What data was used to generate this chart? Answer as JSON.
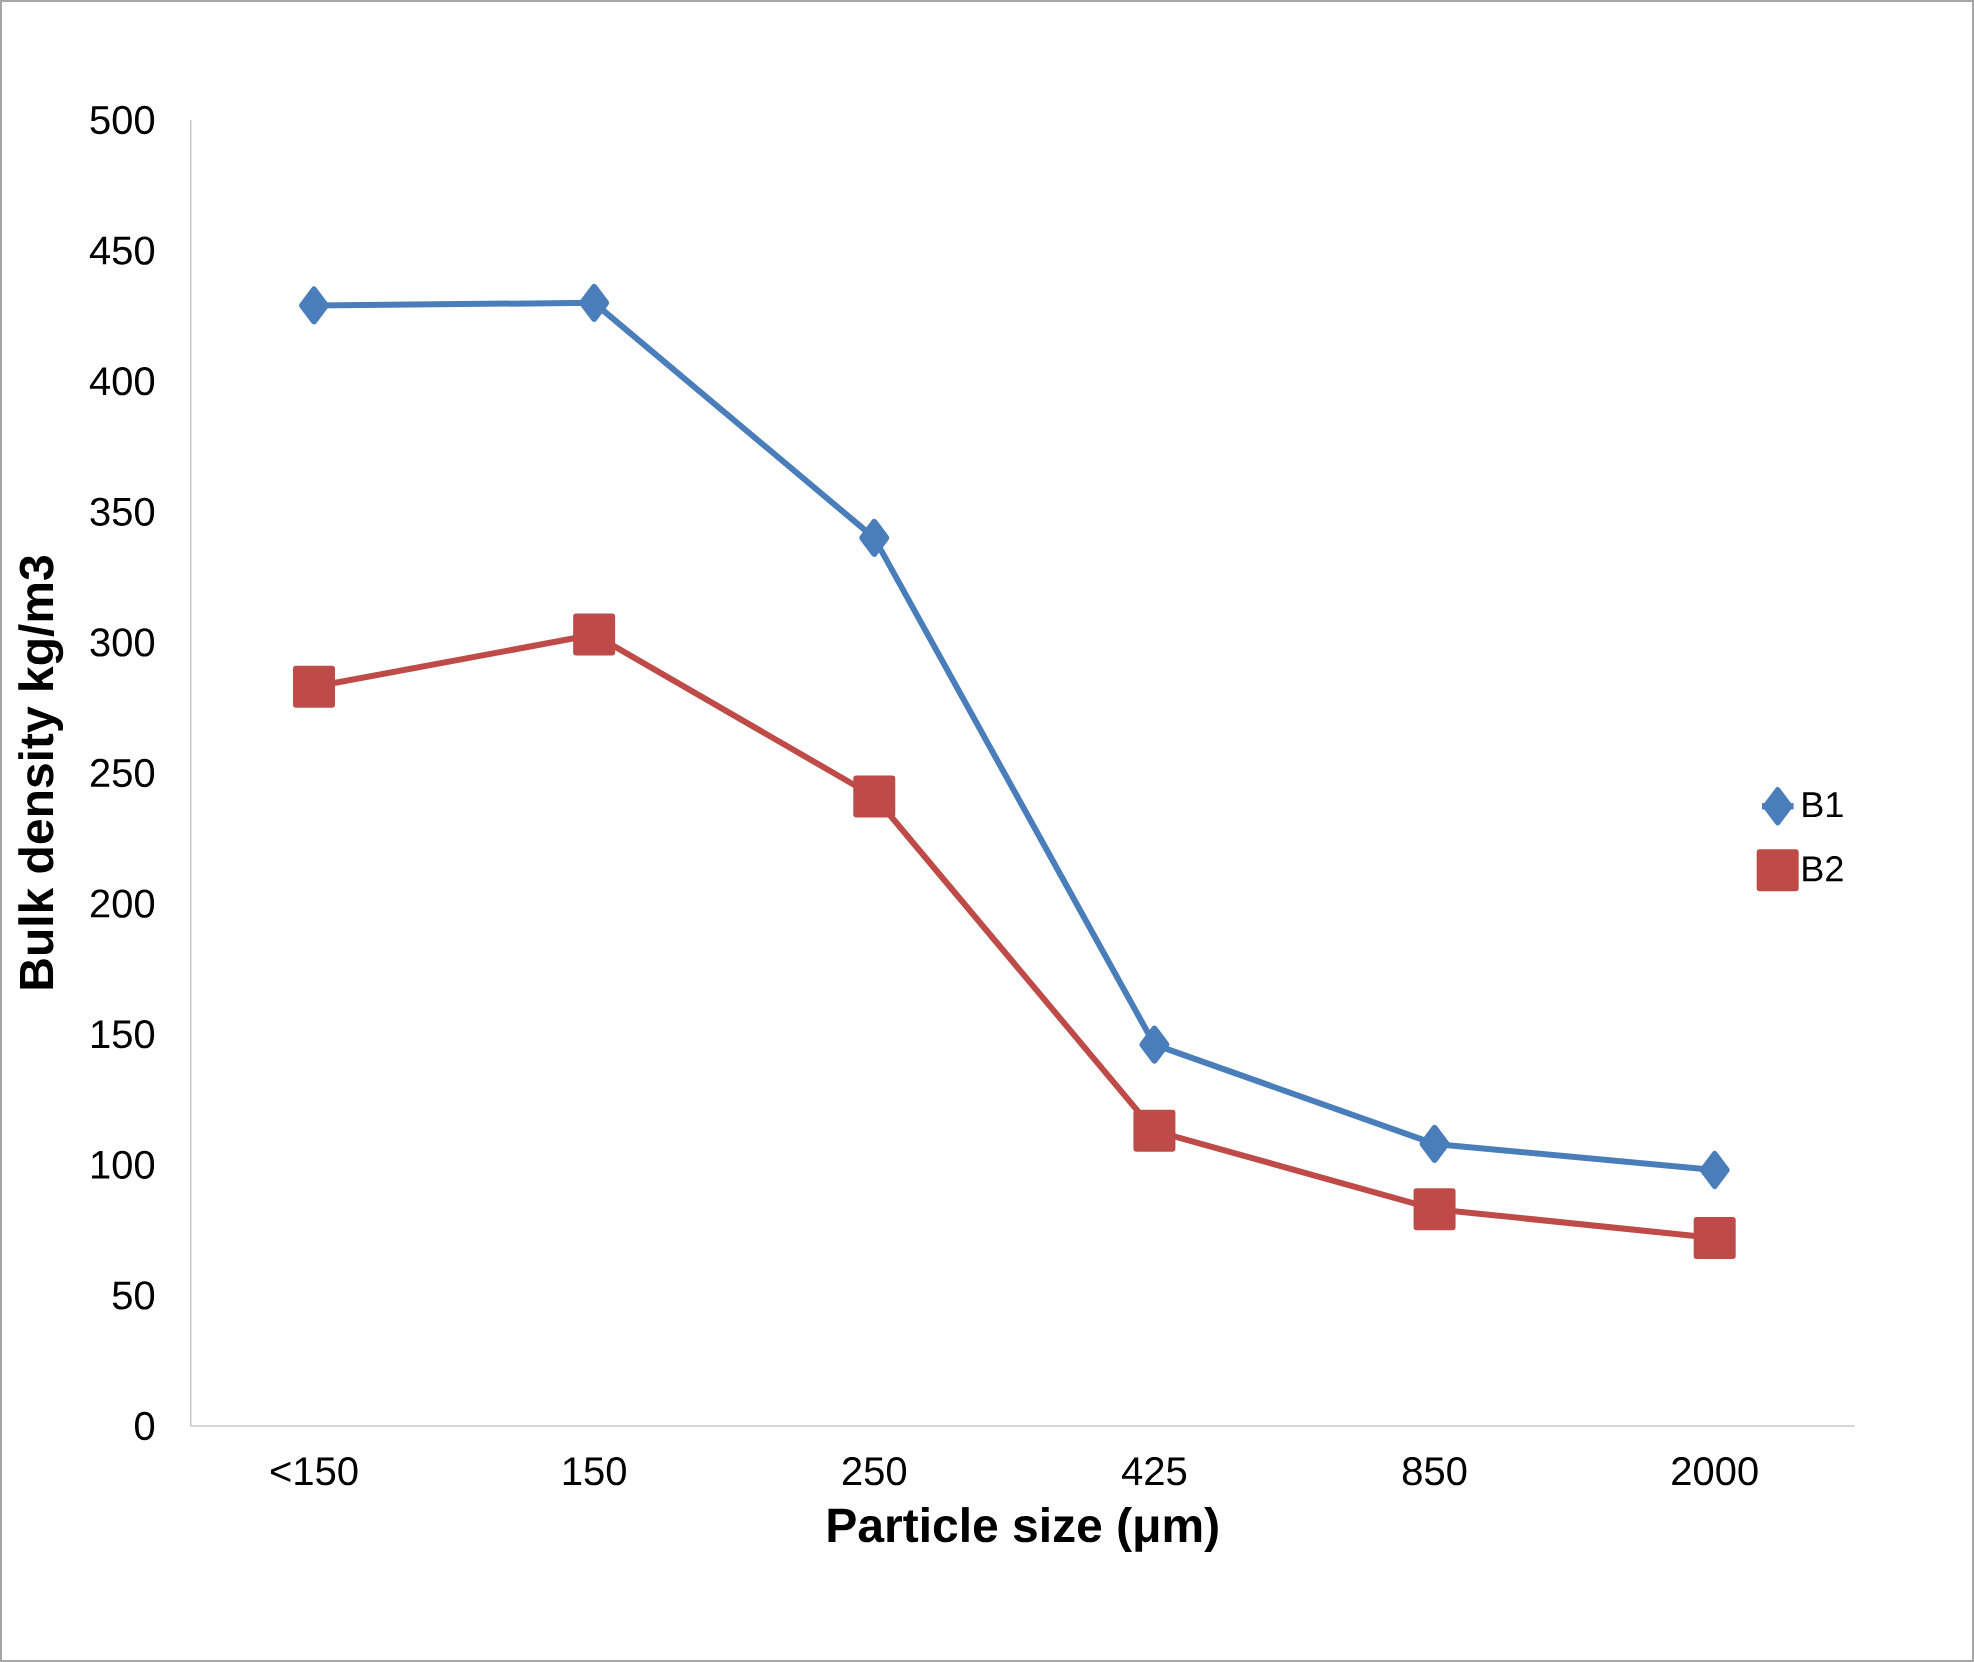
{
  "chart_data": {
    "type": "line",
    "xlabel": "Particle size (μm)",
    "ylabel": "Bulk density kg/m3",
    "categories": [
      "<150",
      "150",
      "250",
      "425",
      "850",
      "2000"
    ],
    "series": [
      {
        "name": "B1",
        "color": "#4a7ebb",
        "marker": "diamond",
        "values": [
          429,
          430,
          340,
          146,
          108,
          98
        ]
      },
      {
        "name": "B2",
        "color": "#be4b48",
        "marker": "square",
        "values": [
          283,
          303,
          241,
          113,
          83,
          72
        ]
      }
    ],
    "ylim": [
      0,
      500
    ],
    "yticks": [
      0,
      50,
      100,
      150,
      200,
      250,
      300,
      350,
      400,
      450,
      500
    ],
    "grid": false,
    "legend": "right",
    "line_style": "solid"
  }
}
